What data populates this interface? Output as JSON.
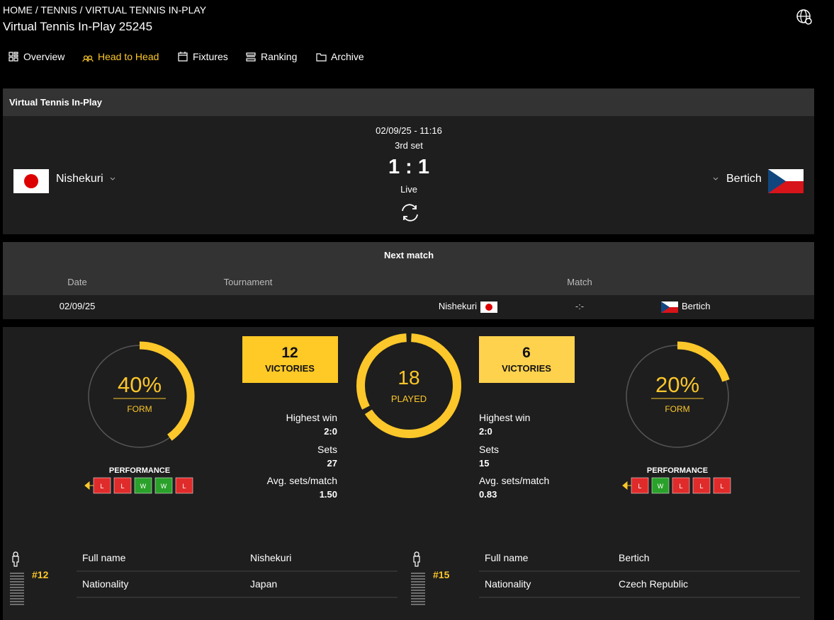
{
  "header": {
    "breadcrumb": "HOME / TENNIS / VIRTUAL TENNIS IN-PLAY",
    "title": "Virtual Tennis In-Play 25245"
  },
  "nav": {
    "items": [
      "Overview",
      "Head to Head",
      "Fixtures",
      "Ranking",
      "Archive"
    ],
    "active": 1
  },
  "match": {
    "competition": "Virtual Tennis In-Play",
    "date": "02/09/25 - 11:16",
    "period": "3rd set",
    "score": "1 : 1",
    "status": "Live",
    "home": "Nishekuri",
    "away": "Bertich"
  },
  "next_match": {
    "title": "Next match",
    "columns": [
      "Date",
      "Tournament",
      "Match"
    ],
    "row": {
      "date": "02/09/25",
      "home": "Nishekuri",
      "score": "-:-",
      "away": "Bertich"
    }
  },
  "stats": {
    "labels": {
      "form": "FORM",
      "victories": "VICTORIES",
      "played": "PLAYED",
      "performance": "PERFORMANCE",
      "highest_win": "Highest win",
      "sets": "Sets",
      "avg": "Avg. sets/match"
    },
    "played": 18,
    "home": {
      "form": {
        "value": 40,
        "label": "40%"
      },
      "victories": 12,
      "performance": [
        "L",
        "L",
        "W",
        "W",
        "L"
      ],
      "highest_win": "2:0",
      "sets": 27,
      "avg": "1.50"
    },
    "away": {
      "form": {
        "value": 20,
        "label": "20%"
      },
      "victories": 6,
      "performance": [
        "L",
        "W",
        "L",
        "L",
        "L"
      ],
      "highest_win": "2:0",
      "sets": 15,
      "avg": "0.83"
    }
  },
  "players": {
    "labels": {
      "full_name": "Full name",
      "nationality": "Nationality"
    },
    "home": {
      "rank": "#12",
      "full_name": "Nishekuri",
      "nationality": "Japan"
    },
    "away": {
      "rank": "#15",
      "full_name": "Bertich",
      "nationality": "Czech Republic"
    }
  }
}
